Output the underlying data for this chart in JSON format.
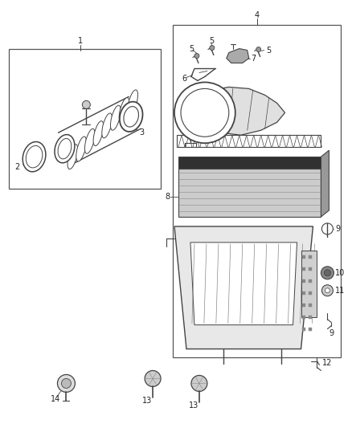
{
  "bg_color": "#ffffff",
  "fig_width": 4.38,
  "fig_height": 5.33,
  "dpi": 100,
  "lc": "#333333",
  "pc": "#444444",
  "label_fontsize": 7.0
}
